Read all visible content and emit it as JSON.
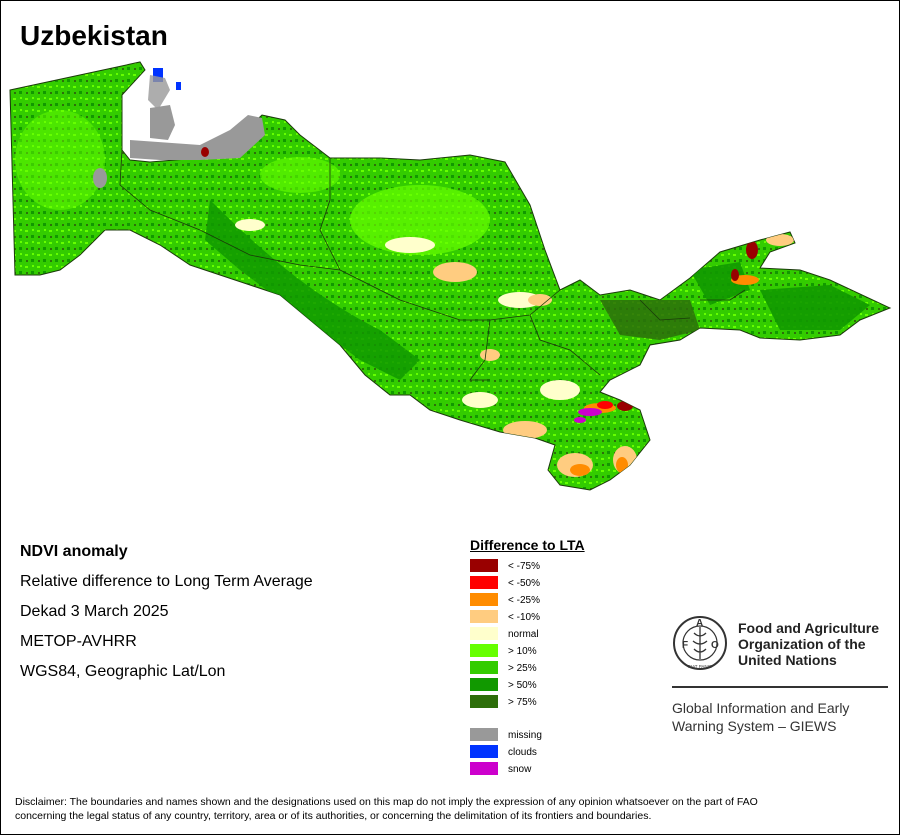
{
  "title": "Uzbekistan",
  "map": {
    "region": "Uzbekistan",
    "palette": {
      "lt75": "#990000",
      "lt50": "#ff0000",
      "lt25": "#ff8c00",
      "lt10": "#ffcc80",
      "normal": "#ffffcc",
      "gt10": "#66ff00",
      "gt25": "#33cc00",
      "gt50": "#119900",
      "gt75": "#2d6e0a",
      "missing": "#999999",
      "clouds": "#0033ff",
      "snow": "#cc00cc"
    }
  },
  "info": {
    "heading": "NDVI anomaly",
    "line1": "Relative difference to Long Term Average",
    "line2": "Dekad 3 March 2025",
    "line3": "METOP-AVHRR",
    "line4": "WGS84, Geographic Lat/Lon"
  },
  "legend": {
    "title": "Difference to LTA",
    "items": [
      {
        "label": "< -75%",
        "color": "#990000"
      },
      {
        "label": "< -50%",
        "color": "#ff0000"
      },
      {
        "label": "< -25%",
        "color": "#ff8c00"
      },
      {
        "label": "< -10%",
        "color": "#ffcc80"
      },
      {
        "label": "normal",
        "color": "#ffffcc"
      },
      {
        "label": "> 10%",
        "color": "#66ff00"
      },
      {
        "label": "> 25%",
        "color": "#33cc00"
      },
      {
        "label": "> 50%",
        "color": "#119900"
      },
      {
        "label": "> 75%",
        "color": "#2d6e0a"
      }
    ],
    "extra": [
      {
        "label": "missing",
        "color": "#999999"
      },
      {
        "label": "clouds",
        "color": "#0033ff"
      },
      {
        "label": "snow",
        "color": "#cc00cc"
      }
    ]
  },
  "fao": {
    "logo_letters": "FAO",
    "logo_motto": "FIAT PANIS",
    "name_line1": "Food and Agriculture",
    "name_line2": "Organization of the",
    "name_line3": "United Nations",
    "giews_line1": "Global Information and Early",
    "giews_line2": "Warning System – GIEWS"
  },
  "disclaimer": {
    "line1": "Disclaimer: The boundaries and names shown and the designations used on this map do not imply the expression of any opinion whatsoever on the part of FAO",
    "line2": "concerning the legal status of any country, territory, area or of its authorities, or concerning the delimitation of its frontiers and boundaries."
  }
}
